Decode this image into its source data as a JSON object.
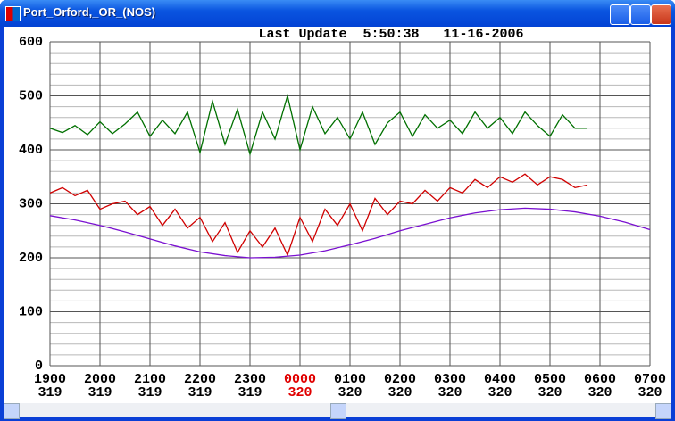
{
  "window": {
    "title": "Port_Orford,_OR_(NOS)"
  },
  "chart_data": {
    "type": "line",
    "title": "Last Update  5:50:38   11-16-2006",
    "xlim": [
      0,
      12
    ],
    "xticks": [
      {
        "value": 0,
        "label": "1900"
      },
      {
        "value": 1,
        "label": "2000"
      },
      {
        "value": 2,
        "label": "2100"
      },
      {
        "value": 3,
        "label": "2200"
      },
      {
        "value": 4,
        "label": "2300"
      },
      {
        "value": 5,
        "label": "0000"
      },
      {
        "value": 6,
        "label": "0100"
      },
      {
        "value": 7,
        "label": "0200"
      },
      {
        "value": 8,
        "label": "0300"
      },
      {
        "value": 9,
        "label": "0400"
      },
      {
        "value": 10,
        "label": "0500"
      },
      {
        "value": 11,
        "label": "0600"
      },
      {
        "value": 12,
        "label": "0700"
      }
    ],
    "xtick_days": [
      "319",
      "319",
      "319",
      "319",
      "319",
      "320",
      "320",
      "320",
      "320",
      "320",
      "320",
      "320",
      "320"
    ],
    "xtick_label_colors": [
      "#000000",
      "#000000",
      "#000000",
      "#000000",
      "#000000",
      "#e00000",
      "#000000",
      "#000000",
      "#000000",
      "#000000",
      "#000000",
      "#000000",
      "#000000"
    ],
    "ylim": [
      0,
      600
    ],
    "yticks": [
      0,
      100,
      200,
      300,
      400,
      500,
      600
    ],
    "yminorticks": [
      20,
      40,
      60,
      80,
      120,
      140,
      160,
      180,
      220,
      240,
      260,
      280,
      320,
      340,
      360,
      380,
      420,
      440,
      460,
      480,
      520,
      540,
      560,
      580
    ],
    "grid": true,
    "series": [
      {
        "color": "#007000",
        "x": [
          0,
          0.25,
          0.5,
          0.75,
          1,
          1.25,
          1.5,
          1.75,
          2,
          2.25,
          2.5,
          2.75,
          3,
          3.25,
          3.5,
          3.75,
          4,
          4.25,
          4.5,
          4.75,
          5,
          5.25,
          5.5,
          5.75,
          6,
          6.25,
          6.5,
          6.75,
          7,
          7.25,
          7.5,
          7.75,
          8,
          8.25,
          8.5,
          8.75,
          9,
          9.25,
          9.5,
          9.75,
          10,
          10.25,
          10.5,
          10.75
        ],
        "values": [
          440,
          432,
          445,
          428,
          452,
          430,
          448,
          470,
          425,
          455,
          430,
          470,
          395,
          490,
          410,
          475,
          392,
          470,
          420,
          500,
          400,
          480,
          430,
          460,
          420,
          470,
          410,
          450,
          470,
          425,
          465,
          440,
          455,
          430,
          470,
          440,
          460,
          430,
          470,
          445,
          425,
          465,
          440,
          440
        ]
      },
      {
        "color": "#d00000",
        "x": [
          0,
          0.25,
          0.5,
          0.75,
          1,
          1.25,
          1.5,
          1.75,
          2,
          2.25,
          2.5,
          2.75,
          3,
          3.25,
          3.5,
          3.75,
          4,
          4.25,
          4.5,
          4.75,
          5,
          5.25,
          5.5,
          5.75,
          6,
          6.25,
          6.5,
          6.75,
          7,
          7.25,
          7.5,
          7.75,
          8,
          8.25,
          8.5,
          8.75,
          9,
          9.25,
          9.5,
          9.75,
          10,
          10.25,
          10.5,
          10.75
        ],
        "values": [
          320,
          330,
          315,
          325,
          290,
          300,
          305,
          280,
          295,
          260,
          290,
          255,
          275,
          230,
          265,
          210,
          250,
          220,
          255,
          205,
          275,
          230,
          290,
          260,
          300,
          250,
          310,
          280,
          305,
          300,
          325,
          305,
          330,
          320,
          345,
          330,
          350,
          340,
          355,
          335,
          350,
          345,
          330,
          335
        ]
      },
      {
        "color": "#7a10d0",
        "x": [
          0,
          0.5,
          1,
          1.5,
          2,
          2.5,
          3,
          3.5,
          4,
          4.5,
          5,
          5.5,
          6,
          6.5,
          7,
          7.5,
          8,
          8.5,
          9,
          9.5,
          10,
          10.5,
          11,
          11.5,
          12
        ],
        "values": [
          278,
          270,
          260,
          248,
          235,
          222,
          211,
          204,
          200,
          201,
          205,
          213,
          224,
          236,
          250,
          262,
          274,
          283,
          289,
          292,
          290,
          285,
          277,
          266,
          252
        ]
      }
    ]
  }
}
